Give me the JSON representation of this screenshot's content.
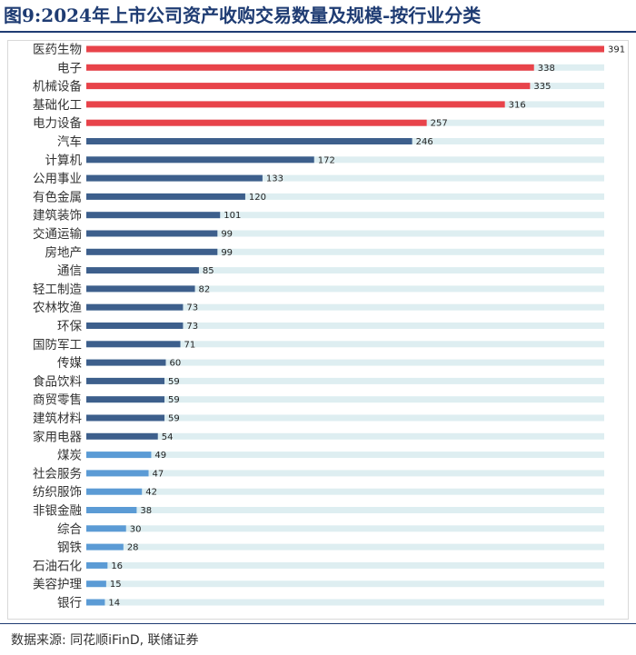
{
  "figure": {
    "title": "图9:2024年上市公司资产收购交易数量及规模-按行业分类",
    "source": "数据来源: 同花顺iFinD, 联储证券"
  },
  "colors": {
    "title": "#1f3c73",
    "top_bar": "#e8434a",
    "mid_bar": "#3d5f8c",
    "low_bar": "#5b9bd5",
    "track": "#deeef1"
  },
  "chart_data": {
    "type": "bar",
    "orientation": "horizontal",
    "title": "2024年上市公司资产收购交易数量及规模-按行业分类",
    "xlabel": "",
    "ylabel": "",
    "xlim": [
      0,
      391
    ],
    "grid": false,
    "legend": "none",
    "categories": [
      "医药生物",
      "电子",
      "机械设备",
      "基础化工",
      "电力设备",
      "汽车",
      "计算机",
      "公用事业",
      "有色金属",
      "建筑装饰",
      "交通运输",
      "房地产",
      "通信",
      "轻工制造",
      "农林牧渔",
      "环保",
      "国防军工",
      "传媒",
      "食品饮料",
      "商贸零售",
      "建筑材料",
      "家用电器",
      "煤炭",
      "社会服务",
      "纺织服饰",
      "非银金融",
      "综合",
      "钢铁",
      "石油石化",
      "美容护理",
      "银行"
    ],
    "values": [
      391,
      338,
      335,
      316,
      257,
      246,
      172,
      133,
      120,
      101,
      99,
      99,
      85,
      82,
      73,
      73,
      71,
      60,
      59,
      59,
      59,
      54,
      49,
      47,
      42,
      38,
      30,
      28,
      16,
      15,
      14
    ],
    "color_groups": [
      "top",
      "top",
      "top",
      "top",
      "top",
      "mid",
      "mid",
      "mid",
      "mid",
      "mid",
      "mid",
      "mid",
      "mid",
      "mid",
      "mid",
      "mid",
      "mid",
      "mid",
      "mid",
      "mid",
      "mid",
      "mid",
      "low",
      "low",
      "low",
      "low",
      "low",
      "low",
      "low",
      "low",
      "low"
    ]
  }
}
